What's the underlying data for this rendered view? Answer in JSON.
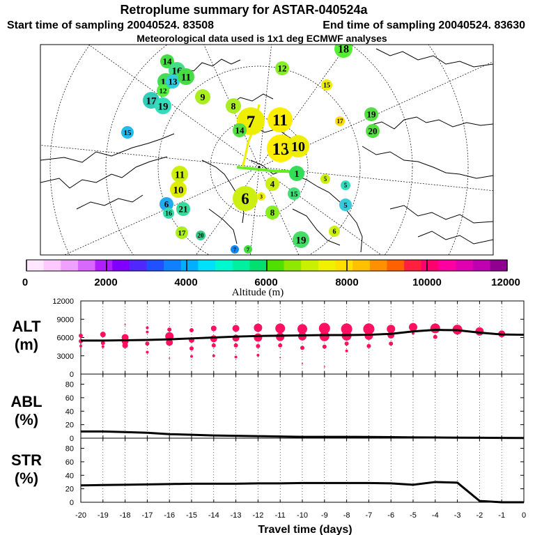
{
  "header": {
    "title": "Retroplume summary for ASTAR-040524a",
    "start_label": "Start time of sampling 20040524. 83508",
    "end_label": "End time of sampling 20040524. 83630",
    "met_label": "Meteorological data used is 1x1 deg ECMWF analyses"
  },
  "colors": {
    "profile_line": "#000000",
    "scatter_point": "#ff1060",
    "map_land": "#000000",
    "grid": "#000000"
  },
  "colorbar": {
    "title": "Altitude (m)",
    "tick_labels": [
      "0",
      "2000",
      "4000",
      "6000",
      "8000",
      "10000",
      "12000"
    ],
    "segment_colors": [
      "#ffe8ff",
      "#ffc8ff",
      "#f0a0ff",
      "#d868ff",
      "#b020ff",
      "#8000ff",
      "#5028ff",
      "#2050ff",
      "#1080ff",
      "#00b0ff",
      "#00e0f8",
      "#00f8d0",
      "#00f0a0",
      "#00e070",
      "#50e000",
      "#90e800",
      "#c8f000",
      "#f0f000",
      "#ffe000",
      "#ffc000",
      "#ff9000",
      "#ff6000",
      "#ff2040",
      "#ff0070",
      "#ff00a0",
      "#e000b0",
      "#c000b0",
      "#900090"
    ]
  },
  "map": {
    "annotations": [
      {
        "label": "14",
        "color": "#44dd44"
      },
      {
        "label": "18",
        "color": "#55ee33"
      },
      {
        "label": "14",
        "color": "#44dd55"
      },
      {
        "label": "16",
        "color": "#44dd88"
      },
      {
        "label": "13",
        "color": "#33ccdd"
      },
      {
        "label": "11",
        "color": "#44dd44"
      },
      {
        "label": "12",
        "color": "#88ee22"
      },
      {
        "label": "12",
        "color": "#55ee44"
      },
      {
        "label": "17",
        "color": "#33ccbb"
      },
      {
        "label": "19",
        "color": "#33ddbb"
      },
      {
        "label": "9",
        "color": "#aaee22"
      },
      {
        "label": "15",
        "color": "#eeee00"
      },
      {
        "label": "15",
        "color": "#22bbee"
      },
      {
        "label": "8",
        "color": "#aaee22"
      },
      {
        "label": "7",
        "color": "#eeee00"
      },
      {
        "label": "11",
        "color": "#ffee00"
      },
      {
        "label": "17",
        "color": "#ffdd00"
      },
      {
        "label": "19",
        "color": "#55dd44"
      },
      {
        "label": "20",
        "color": "#55dd44"
      },
      {
        "label": "14",
        "color": "#55dd44"
      },
      {
        "label": "13",
        "color": "#ffee00"
      },
      {
        "label": "10",
        "color": "#eeee00"
      },
      {
        "label": "1",
        "color": "#33dd55"
      },
      {
        "label": "11",
        "color": "#ccee11"
      },
      {
        "label": "10",
        "color": "#ddee00"
      },
      {
        "label": "5",
        "color": "#ccee11"
      },
      {
        "label": "4",
        "color": "#ccee11"
      },
      {
        "label": "15",
        "color": "#44dd77"
      },
      {
        "label": "5",
        "color": "#33ddbb"
      },
      {
        "label": "5",
        "color": "#33ccdd"
      },
      {
        "label": "6",
        "color": "#22aaee"
      },
      {
        "label": "21",
        "color": "#33dd99"
      },
      {
        "label": "16",
        "color": "#33ddaa"
      },
      {
        "label": "8",
        "color": "#88ee22"
      },
      {
        "label": "17",
        "color": "#aaee22"
      },
      {
        "label": "20",
        "color": "#33cc88"
      },
      {
        "label": "6",
        "color": "#ccee11"
      },
      {
        "label": "19",
        "color": "#44dd66"
      },
      {
        "label": "7",
        "color": "#1188ee"
      },
      {
        "label": "7",
        "color": "#44dd44"
      },
      {
        "label": "6",
        "color": "#ccee11"
      },
      {
        "label": "3",
        "color": "#eeee00"
      }
    ]
  },
  "chart_data": [
    {
      "type": "scatter",
      "name": "ALT",
      "ylabel_line1": "ALT",
      "ylabel_line2": "(m)",
      "ylim": [
        0,
        12000
      ],
      "xlim": [
        -20,
        0
      ],
      "yticks": [
        "0",
        "3000",
        "6000",
        "9000",
        "12000"
      ],
      "line": {
        "x": [
          -20,
          -19,
          -18,
          -17,
          -16,
          -15,
          -14,
          -13,
          -12,
          -11,
          -10,
          -9,
          -8,
          -7,
          -6,
          -5,
          -4,
          -3,
          -2,
          -1,
          0
        ],
        "y": [
          5500,
          5500,
          5550,
          5600,
          5700,
          5850,
          6000,
          6150,
          6250,
          6300,
          6350,
          6400,
          6400,
          6450,
          6600,
          7000,
          7250,
          7200,
          6800,
          6500,
          6450
        ]
      },
      "points": {
        "x": [
          -20,
          -20,
          -20,
          -19,
          -19,
          -19,
          -18,
          -18,
          -18,
          -18,
          -17,
          -17,
          -17,
          -17,
          -16,
          -16,
          -16,
          -16,
          -15,
          -15,
          -15,
          -15,
          -14,
          -14,
          -14,
          -14,
          -13,
          -13,
          -13,
          -13,
          -12,
          -12,
          -12,
          -12,
          -11,
          -11,
          -11,
          -11,
          -10,
          -10,
          -10,
          -10,
          -9,
          -9,
          -9,
          -9,
          -8,
          -8,
          -8,
          -8,
          -7,
          -7,
          -7,
          -6,
          -6,
          -6,
          -5,
          -5,
          -4,
          -4,
          -3,
          -3,
          -2,
          -1
        ],
        "y": [
          6300,
          5400,
          4600,
          6500,
          5100,
          4500,
          8100,
          6000,
          5400,
          4700,
          7600,
          6900,
          5000,
          3600,
          7300,
          6200,
          5200,
          2600,
          7200,
          5600,
          4200,
          2900,
          7500,
          5800,
          4700,
          3000,
          7500,
          5900,
          4700,
          2800,
          7600,
          6000,
          4600,
          3100,
          7500,
          6100,
          4700,
          2700,
          7400,
          6200,
          4300,
          1700,
          7500,
          6200,
          4500,
          1200,
          7400,
          6300,
          5000,
          3800,
          7400,
          6300,
          4600,
          7400,
          6400,
          5000,
          7700,
          6700,
          7500,
          6100,
          7300,
          6800,
          7000,
          6600
        ],
        "size": [
          3,
          3,
          2,
          4,
          3,
          2,
          1,
          5,
          5,
          4,
          2,
          2,
          3,
          2,
          3,
          6,
          5,
          1,
          3,
          4,
          3,
          2,
          4,
          5,
          3,
          2,
          5,
          5,
          3,
          2,
          6,
          6,
          3,
          2,
          7,
          6,
          3,
          1,
          7,
          6,
          3,
          1,
          8,
          7,
          3,
          1,
          8,
          7,
          3,
          2,
          8,
          6,
          3,
          6,
          5,
          3,
          6,
          2,
          7,
          3,
          7,
          3,
          6,
          5
        ]
      }
    },
    {
      "type": "line",
      "name": "ABL",
      "ylabel_line1": "ABL",
      "ylabel_line2": "(%)",
      "ylim": [
        0,
        95
      ],
      "xlim": [
        -20,
        0
      ],
      "yticks": [
        "0",
        "20",
        "40",
        "60",
        "80"
      ],
      "x": [
        -20,
        -19,
        -18,
        -17,
        -16,
        -15,
        -14,
        -13,
        -12,
        -11,
        -10,
        -9,
        -8,
        -7,
        -6,
        -5,
        -4,
        -3,
        -2,
        -1,
        0
      ],
      "y": [
        10,
        10,
        9,
        8,
        6,
        5,
        4,
        3.5,
        3,
        2.5,
        2,
        2,
        2,
        1.8,
        1.5,
        1.2,
        1,
        0.8,
        0.6,
        0.4,
        0.3
      ]
    },
    {
      "type": "line",
      "name": "STR",
      "ylabel_line1": "STR",
      "ylabel_line2": "(%)",
      "ylim": [
        0,
        95
      ],
      "xlim": [
        -20,
        0
      ],
      "yticks": [
        "0",
        "20",
        "40",
        "60",
        "80"
      ],
      "x": [
        -20,
        -19,
        -18,
        -17,
        -16,
        -15,
        -14,
        -13,
        -12,
        -11,
        -10,
        -9,
        -8,
        -7,
        -6,
        -5,
        -4,
        -3,
        -2,
        -1,
        0
      ],
      "y": [
        25,
        25.5,
        26,
        26.5,
        27,
        27.5,
        27.5,
        27.5,
        28,
        28,
        28.5,
        28.5,
        28.5,
        28.5,
        28,
        26,
        30,
        29,
        2,
        0,
        0
      ],
      "xlabel": "Travel time (days)",
      "xticks": [
        "-20",
        "-19",
        "-18",
        "-17",
        "-16",
        "-15",
        "-14",
        "-13",
        "-12",
        "-11",
        "-10",
        "-9",
        "-8",
        "-7",
        "-6",
        "-5",
        "-4",
        "-3",
        "-2",
        "-1",
        "0"
      ]
    }
  ]
}
